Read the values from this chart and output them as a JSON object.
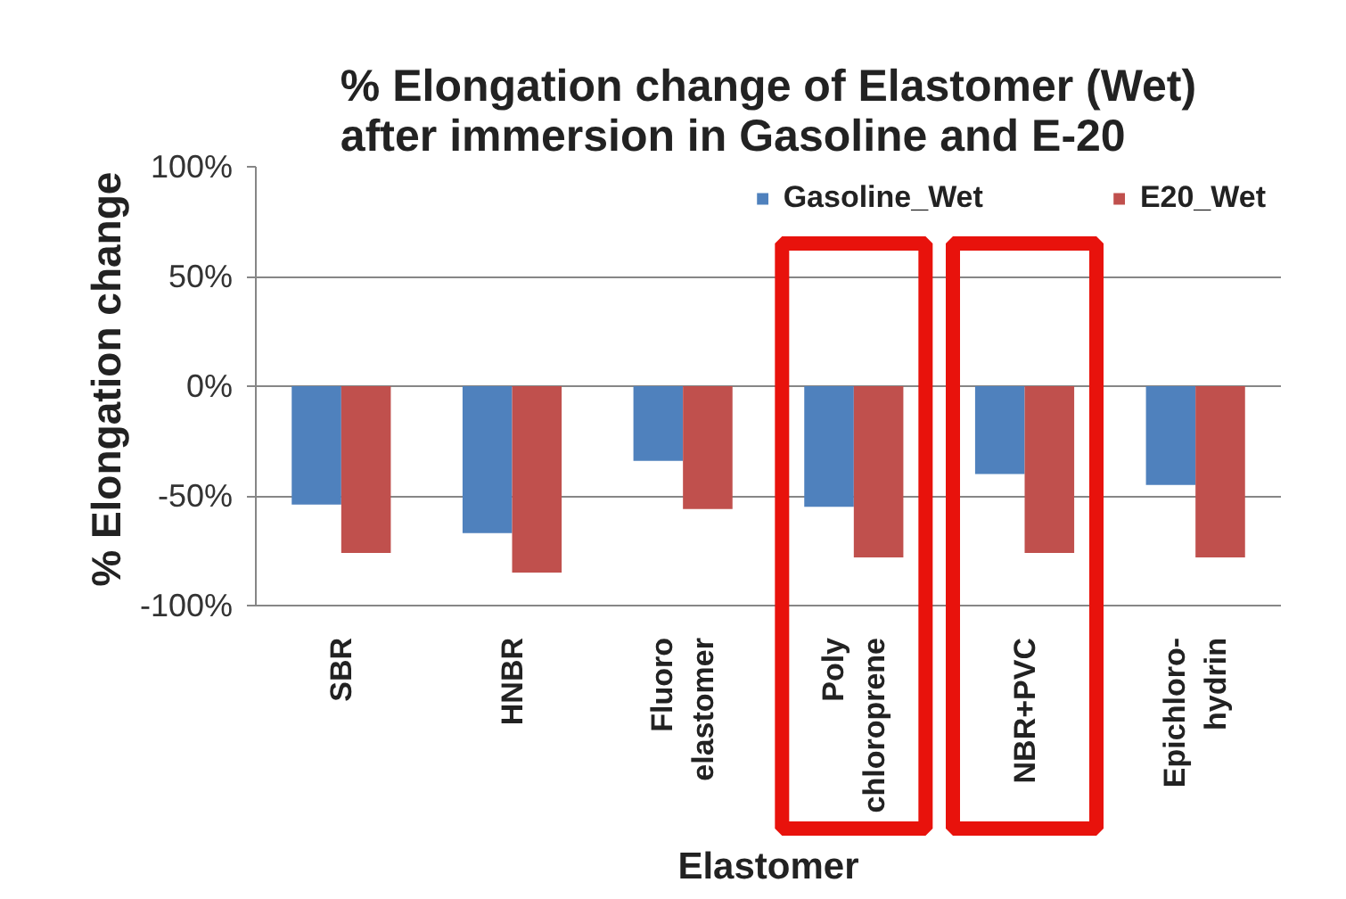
{
  "chart_data": {
    "type": "bar",
    "title": "% Elongation change of Elastomer (Wet)\nafter immersion in Gasoline and E-20",
    "xlabel": "Elastomer",
    "ylabel": "% Elongation change",
    "categories": [
      "SBR",
      "HNBR",
      "Fluoro\nelastomer",
      "Poly\nchloroprene",
      "NBR+PVC",
      "Epichloro-\nhydrin"
    ],
    "series": [
      {
        "name": "Gasoline_Wet",
        "color": "#4f81bd",
        "values": [
          -54,
          -67,
          -34,
          -55,
          -40,
          -45
        ]
      },
      {
        "name": "E20_Wet",
        "color": "#c0504d",
        "values": [
          -76,
          -85,
          -56,
          -78,
          -76,
          -78
        ]
      }
    ],
    "ylim": [
      -100,
      100
    ],
    "yticks": [
      {
        "value": -100,
        "label": "-100%"
      },
      {
        "value": -50,
        "label": "-50%"
      },
      {
        "value": 0,
        "label": "0%"
      },
      {
        "value": 50,
        "label": "50%"
      },
      {
        "value": 100,
        "label": "100%"
      }
    ],
    "grid": "y",
    "legend": "top right"
  }
}
